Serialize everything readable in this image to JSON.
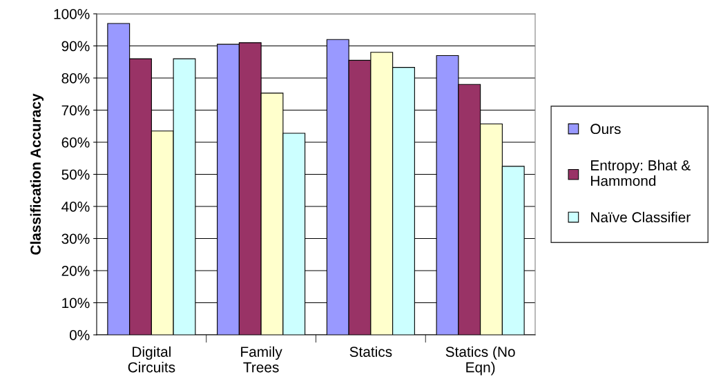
{
  "chart_data": {
    "type": "bar",
    "ylabel": "Classification Accuracy",
    "categories": [
      "Digital\nCircuits",
      "Family\nTrees",
      "Statics",
      "Statics (No\nEqn)"
    ],
    "series": [
      {
        "name": "Ours",
        "color": "#9999ff",
        "values": [
          97,
          90.5,
          92,
          87
        ]
      },
      {
        "name": "Entropy: Bhat &\nHammond",
        "color": "#993366",
        "values": [
          86,
          91,
          85.5,
          78
        ]
      },
      {
        "color": "#ffffcc",
        "values": [
          63.5,
          75.3,
          88,
          65.7
        ]
      },
      {
        "name": "Naïve Classifier",
        "color": "#ccffff",
        "values": [
          86,
          62.8,
          83.3,
          52.5
        ]
      }
    ],
    "ylim": [
      0,
      100
    ],
    "yticks": [
      {
        "value": 0,
        "label": "0%"
      },
      {
        "value": 10,
        "label": "10%"
      },
      {
        "value": 20,
        "label": "20%"
      },
      {
        "value": 30,
        "label": "30%"
      },
      {
        "value": 40,
        "label": "40%"
      },
      {
        "value": 50,
        "label": "50%"
      },
      {
        "value": 60,
        "label": "60%"
      },
      {
        "value": 70,
        "label": "70%"
      },
      {
        "value": 80,
        "label": "80%"
      },
      {
        "value": 90,
        "label": "90%"
      },
      {
        "value": 100,
        "label": "100%"
      }
    ],
    "grid": "y",
    "legend": "right"
  }
}
